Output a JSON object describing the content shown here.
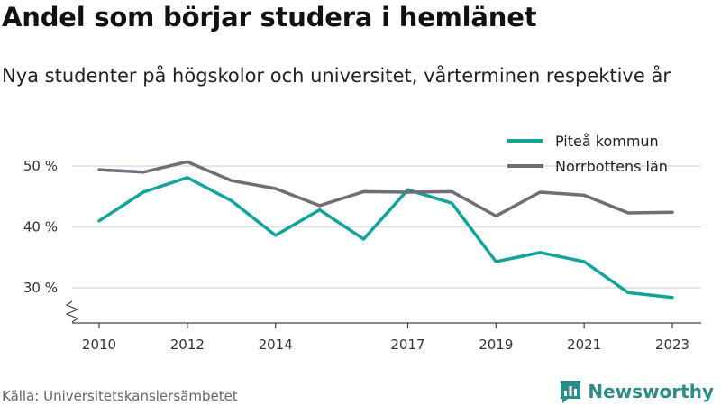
{
  "header": {
    "title": "Andel som börjar studera i hemlänet",
    "subtitle": "Nya studenter på högskolor och universitet, vårterminen respektive år"
  },
  "footer": {
    "source": "Källa: Universitetskanslersämbetet",
    "brand": "Newsworthy",
    "brand_icon": "bar-chart-speech-icon"
  },
  "colors": {
    "pitea": "#12a39a",
    "norrbotten": "#6e6e78",
    "grid": "#dddddd",
    "brand": "#2c8c86"
  },
  "chart_data": {
    "type": "line",
    "x": [
      2010,
      2011,
      2012,
      2013,
      2014,
      2015,
      2016,
      2017,
      2018,
      2019,
      2020,
      2021,
      2022,
      2023
    ],
    "x_ticks": [
      2010,
      2012,
      2014,
      2017,
      2019,
      2021,
      2023
    ],
    "x_tick_labels": [
      "2010",
      "2012",
      "2014",
      "2017",
      "2019",
      "2021",
      "2023"
    ],
    "y_ticks": [
      30,
      40,
      50
    ],
    "y_tick_labels": [
      "30 %",
      "40 %",
      "50 %"
    ],
    "ylim": [
      25,
      53
    ],
    "xlim": [
      2010,
      2023
    ],
    "axis_break": true,
    "grid": true,
    "legend_position": "top-right",
    "series": [
      {
        "name": "Piteå kommun",
        "color": "#12a39a",
        "values": [
          41.0,
          45.7,
          48.1,
          44.3,
          38.6,
          42.8,
          38.0,
          46.1,
          43.9,
          34.3,
          35.8,
          34.3,
          29.2,
          28.4
        ]
      },
      {
        "name": "Norrbottens län",
        "color": "#6e6e78",
        "values": [
          49.4,
          49.0,
          50.7,
          47.6,
          46.3,
          43.5,
          45.8,
          45.7,
          45.8,
          41.8,
          45.7,
          45.2,
          42.3,
          42.4
        ]
      }
    ]
  }
}
